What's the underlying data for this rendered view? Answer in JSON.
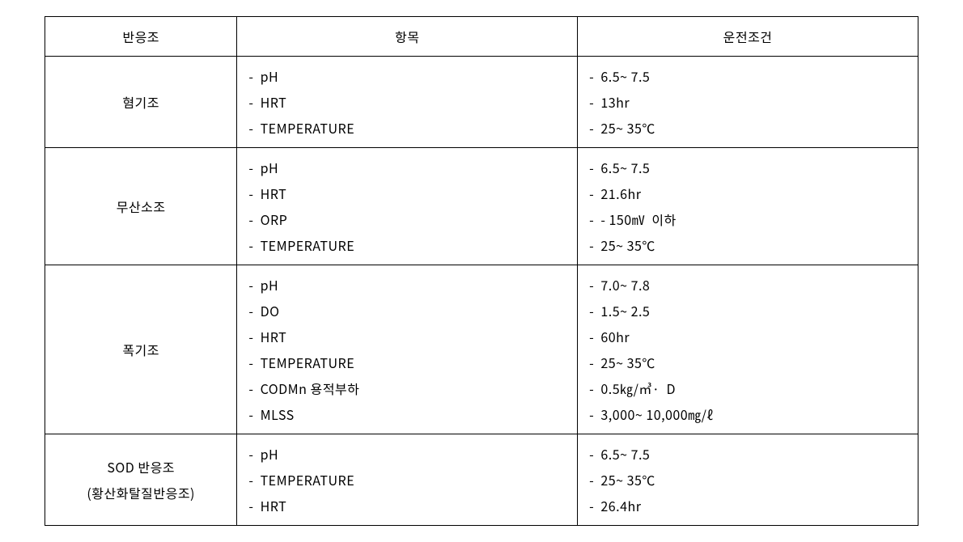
{
  "table": {
    "headers": {
      "reactor": "반응조",
      "item": "항목",
      "condition": "운전조건"
    },
    "rows": [
      {
        "reactor": "혐기조",
        "item_lines": [
          "-  pH",
          "-  HRT",
          "-  TEMPERATURE"
        ],
        "cond_lines": [
          "-  6.5~ 7.5",
          "-  13hr",
          "-  25~ 35℃"
        ]
      },
      {
        "reactor": "무산소조",
        "item_lines": [
          "-  pH",
          "-  HRT",
          "-  ORP",
          "-  TEMPERATURE"
        ],
        "cond_lines": [
          "-  6.5~ 7.5",
          "-  21.6hr",
          "-  - 150㎷  이하",
          "-  25~ 35℃"
        ]
      },
      {
        "reactor": "폭기조",
        "item_lines": [
          "-  pH",
          "-  DO",
          "-  HRT",
          "-  TEMPERATURE",
          "-  CODMn 용적부하",
          "-  MLSS"
        ],
        "cond_lines": [
          "-  7.0~ 7.8",
          "-  1.5~ 2.5",
          "-  60hr",
          "-  25~ 35℃",
          "-  0.5㎏/㎥·  D",
          "-  3,000~ 10,000㎎/ℓ"
        ]
      },
      {
        "reactor": "SOD 반응조",
        "reactor_sub": "(황산화탈질반응조)",
        "item_lines": [
          "-  pH",
          "-  TEMPERATURE",
          "-  HRT"
        ],
        "cond_lines": [
          "-  6.5~ 7.5",
          "-  25~ 35℃",
          "-  26.4hr"
        ]
      }
    ]
  }
}
